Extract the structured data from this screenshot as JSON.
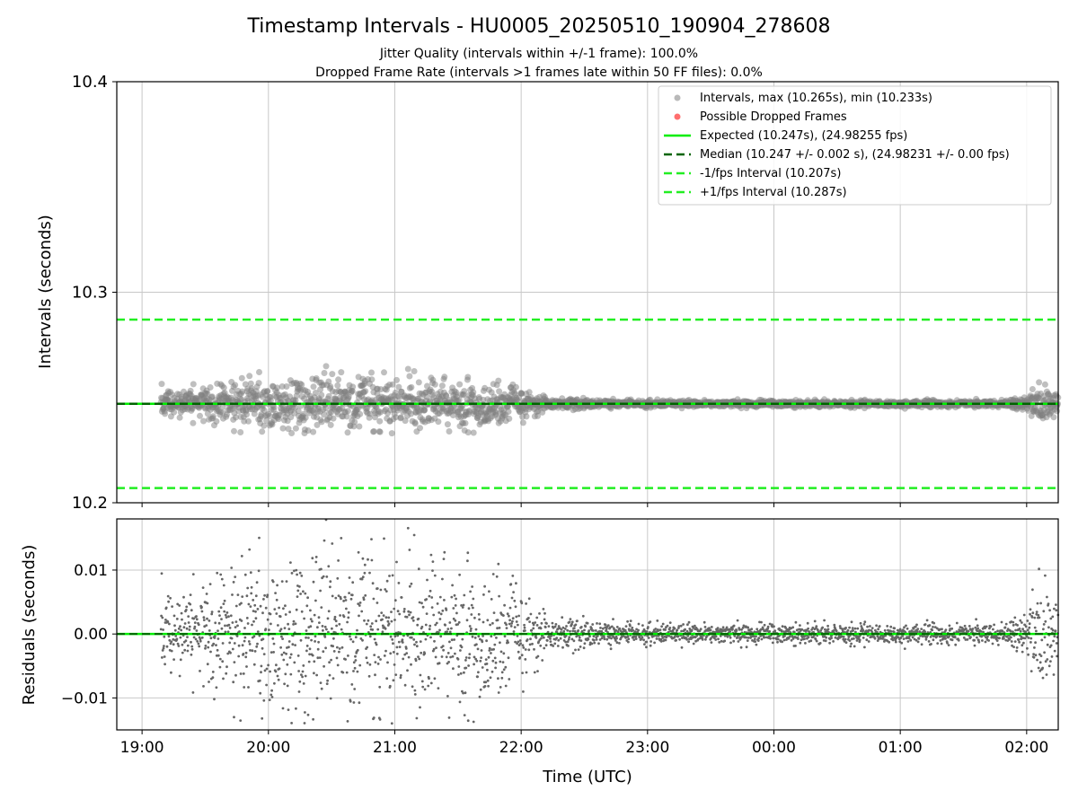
{
  "figure": {
    "title": "Timestamp Intervals - HU0005_20250510_190904_278608",
    "subtitle_1": "Jitter Quality (intervals within +/-1 frame): 100.0%",
    "subtitle_2": "Dropped Frame Rate (intervals >1 frames late within 50 FF files): 0.0%"
  },
  "colors": {
    "interval_points": "#808080",
    "dropped_points": "#ff5555",
    "expected": "#00ee00",
    "median": "#006400",
    "fps_bounds": "#22ee22",
    "residual_points": "#666666",
    "grid": "#c8c8c8"
  },
  "chart_data": [
    {
      "type": "scatter",
      "panel": "intervals",
      "ylabel": "Intervals (seconds)",
      "xlabel": "",
      "xlim_hours": [
        18.8,
        26.25
      ],
      "ylim": [
        10.2,
        10.4
      ],
      "y_ticks": [
        "10.2",
        "10.3",
        "10.4"
      ],
      "grid": true,
      "legend_position": "top-right",
      "series": [
        {
          "name": "Intervals, max (10.265s), min (10.233s)",
          "kind": "points",
          "summary": {
            "max": 10.265,
            "min": 10.233,
            "median": 10.247
          }
        },
        {
          "name": "Possible Dropped Frames",
          "kind": "points",
          "values": []
        }
      ],
      "reference_lines": [
        {
          "name": "Expected (10.247s), (24.98255 fps)",
          "y": 10.247,
          "style": "solid"
        },
        {
          "name": "Median (10.247 +/- 0.002 s), (24.98231 +/- 0.00 fps)",
          "y": 10.247,
          "style": "dashed"
        },
        {
          "name": "-1/fps Interval (10.207s)",
          "y": 10.207,
          "style": "dashed"
        },
        {
          "name": "+1/fps Interval (10.287s)",
          "y": 10.287,
          "style": "dashed"
        }
      ],
      "spread_profile": [
        {
          "t": 19.15,
          "sd": 0.0035
        },
        {
          "t": 19.7,
          "sd": 0.007
        },
        {
          "t": 20.1,
          "sd": 0.0085
        },
        {
          "t": 20.7,
          "sd": 0.009
        },
        {
          "t": 21.3,
          "sd": 0.0075
        },
        {
          "t": 21.9,
          "sd": 0.006
        },
        {
          "t": 22.2,
          "sd": 0.002
        },
        {
          "t": 22.7,
          "sd": 0.0011
        },
        {
          "t": 25.6,
          "sd": 0.001
        },
        {
          "t": 25.95,
          "sd": 0.0015
        },
        {
          "t": 26.05,
          "sd": 0.0055
        },
        {
          "t": 26.25,
          "sd": 0.006
        }
      ]
    },
    {
      "type": "scatter",
      "panel": "residuals",
      "ylabel": "Residuals (seconds)",
      "xlabel": "Time (UTC)",
      "xlim_hours": [
        18.8,
        26.25
      ],
      "ylim": [
        -0.015,
        0.018
      ],
      "y_ticks": [
        {
          "value": 0.01,
          "label": "0.01"
        },
        {
          "value": 0.0,
          "label": "0.00"
        },
        {
          "value": -0.01,
          "label": "−0.01"
        }
      ],
      "x_ticks": [
        {
          "hour": 19,
          "label": "19:00"
        },
        {
          "hour": 20,
          "label": "20:00"
        },
        {
          "hour": 21,
          "label": "21:00"
        },
        {
          "hour": 22,
          "label": "22:00"
        },
        {
          "hour": 23,
          "label": "23:00"
        },
        {
          "hour": 24,
          "label": "00:00"
        },
        {
          "hour": 25,
          "label": "01:00"
        },
        {
          "hour": 26,
          "label": "02:00"
        }
      ],
      "data_start_hour": 19.15,
      "data_end_hour": 26.25,
      "cadence_seconds": 10.247,
      "grid": true
    }
  ]
}
